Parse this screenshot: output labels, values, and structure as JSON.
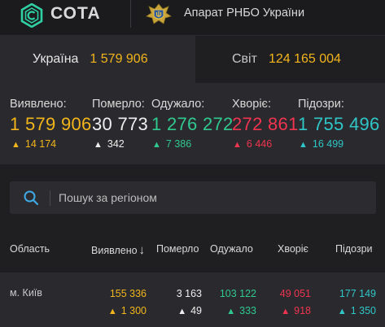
{
  "header": {
    "brand": "СОТА",
    "org": "Апарат РНБО України"
  },
  "tabs": [
    {
      "label": "Україна",
      "value": "1 579 906"
    },
    {
      "label": "Світ",
      "value": "124 165 004"
    }
  ],
  "stats": [
    {
      "label": "Виявлено:",
      "value": "1 579 906",
      "delta": "14 174",
      "color": "#f2b51b"
    },
    {
      "label": "Померло:",
      "value": "30 773",
      "delta": "342",
      "color": "#eeeeee"
    },
    {
      "label": "Одужало:",
      "value": "1 276 272",
      "delta": "7 386",
      "color": "#30c88f"
    },
    {
      "label": "Хворіє:",
      "value": "272 861",
      "delta": "6 446",
      "color": "#f0344f"
    },
    {
      "label": "Підозри:",
      "value": "1 755 496",
      "delta": "16 499",
      "color": "#2fc6c8"
    }
  ],
  "search": {
    "placeholder": "Пошук за регіоном",
    "value": ""
  },
  "table": {
    "columns": [
      "Область",
      "Виявлено",
      "Померло",
      "Одужало",
      "Хворіє",
      "Підозри"
    ],
    "sort_indicator": "↓",
    "rows": [
      {
        "region": "м. Київ",
        "detected": "155 336",
        "detected_delta": "1 300",
        "deaths": "3 163",
        "deaths_delta": "49",
        "recovered": "103 122",
        "recovered_delta": "333",
        "sick": "49 051",
        "sick_delta": "918",
        "suspected": "177 149",
        "suspected_delta": "1 350"
      }
    ]
  },
  "icons": {
    "brand_logo": "cota-logo-icon",
    "emblem": "rnbo-emblem-icon",
    "search": "search-icon",
    "delta_arrow": "arrow-up-icon",
    "sort": "sort-down-icon"
  }
}
